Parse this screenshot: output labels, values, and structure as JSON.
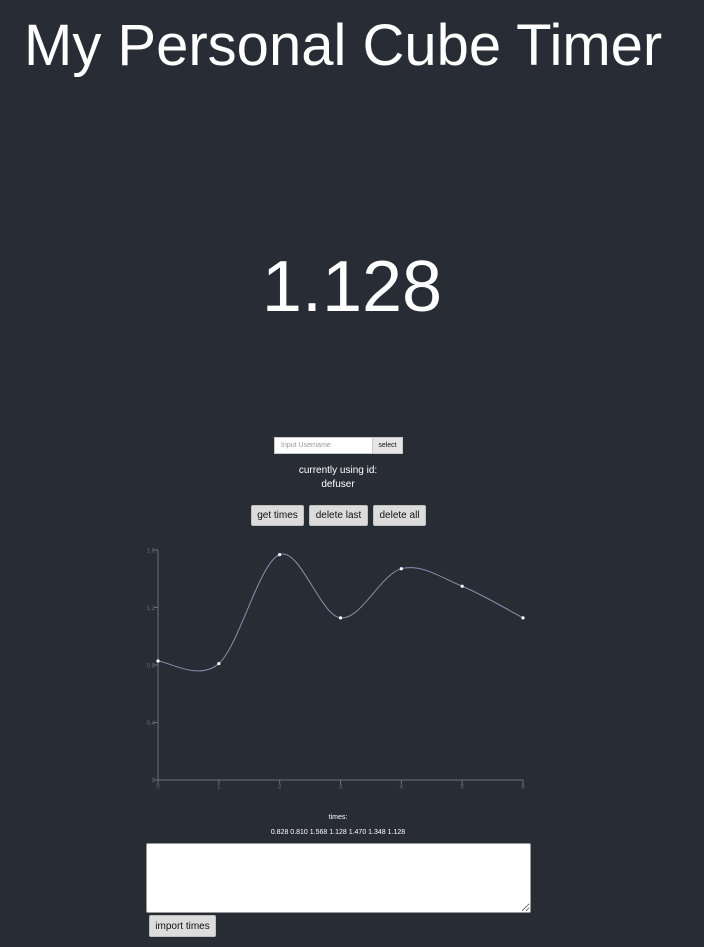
{
  "header": {
    "title": "My Personal Cube Timer"
  },
  "timer": {
    "display": "1.128"
  },
  "user": {
    "input_placeholder": "Input Username",
    "select_label": "select",
    "current_label": "currently using id:",
    "current_id": "defuser"
  },
  "actions": {
    "get_times": "get times",
    "delete_last": "delete last",
    "delete_all": "delete all"
  },
  "chart_data": {
    "type": "line",
    "title": "",
    "xlabel": "",
    "ylabel": "",
    "x": [
      0,
      1,
      2,
      3,
      4,
      5,
      6
    ],
    "values": [
      0.828,
      0.81,
      1.568,
      1.128,
      1.47,
      1.348,
      1.128
    ],
    "xlim": [
      0,
      6
    ],
    "ylim": [
      0,
      1.6
    ],
    "x_ticks": [
      "0",
      "1",
      "2",
      "3",
      "4",
      "5",
      "6"
    ],
    "y_ticks": [
      0,
      0.4,
      0.8,
      1.2,
      1.6
    ],
    "y_tick_labels": [
      "0",
      "0.4",
      "0.8",
      "1.2",
      "1.6"
    ],
    "line_color": "#8a8fb0",
    "point_color": "#ffffff",
    "axis_color": "#6b6f78"
  },
  "times": {
    "label": "times:",
    "values_text": "0.828 0.810 1.568 1.128 1.470 1.348 1.128"
  },
  "import": {
    "textarea_value": "",
    "button_label": "import times"
  }
}
